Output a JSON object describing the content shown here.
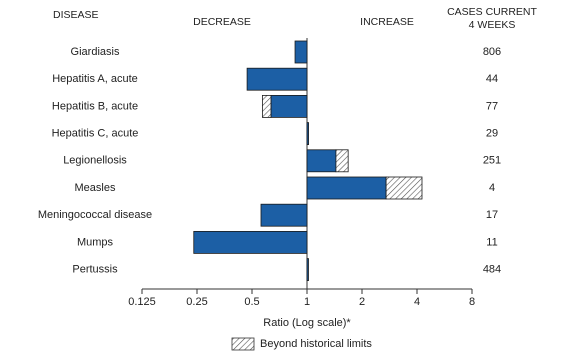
{
  "chart_data": {
    "type": "bar",
    "orientation": "horizontal",
    "log_scale": true,
    "headers": {
      "disease": "DISEASE",
      "decrease": "DECREASE",
      "increase": "INCREASE",
      "cases": [
        "CASES CURRENT",
        "4 WEEKS"
      ]
    },
    "categories": [
      "Giardiasis",
      "Hepatitis A, acute",
      "Hepatitis B, acute",
      "Hepatitis C, acute",
      "Legionellosis",
      "Measles",
      "Meningococcal disease",
      "Mumps",
      "Pertussis"
    ],
    "values": [
      0.86,
      0.47,
      0.57,
      1.02,
      1.68,
      4.26,
      0.56,
      0.24,
      1.01
    ],
    "historical_limits": [
      null,
      null,
      0.635,
      null,
      1.44,
      2.71,
      null,
      null,
      null
    ],
    "cases": [
      806,
      44,
      77,
      29,
      251,
      4,
      17,
      11,
      484
    ],
    "color": "#1c5fa5",
    "xlim": [
      0.125,
      8
    ],
    "xticks": [
      0.125,
      0.25,
      0.5,
      1,
      2,
      4,
      8
    ],
    "xlabel": "Ratio (Log scale)*",
    "legend": "Beyond historical limits"
  }
}
